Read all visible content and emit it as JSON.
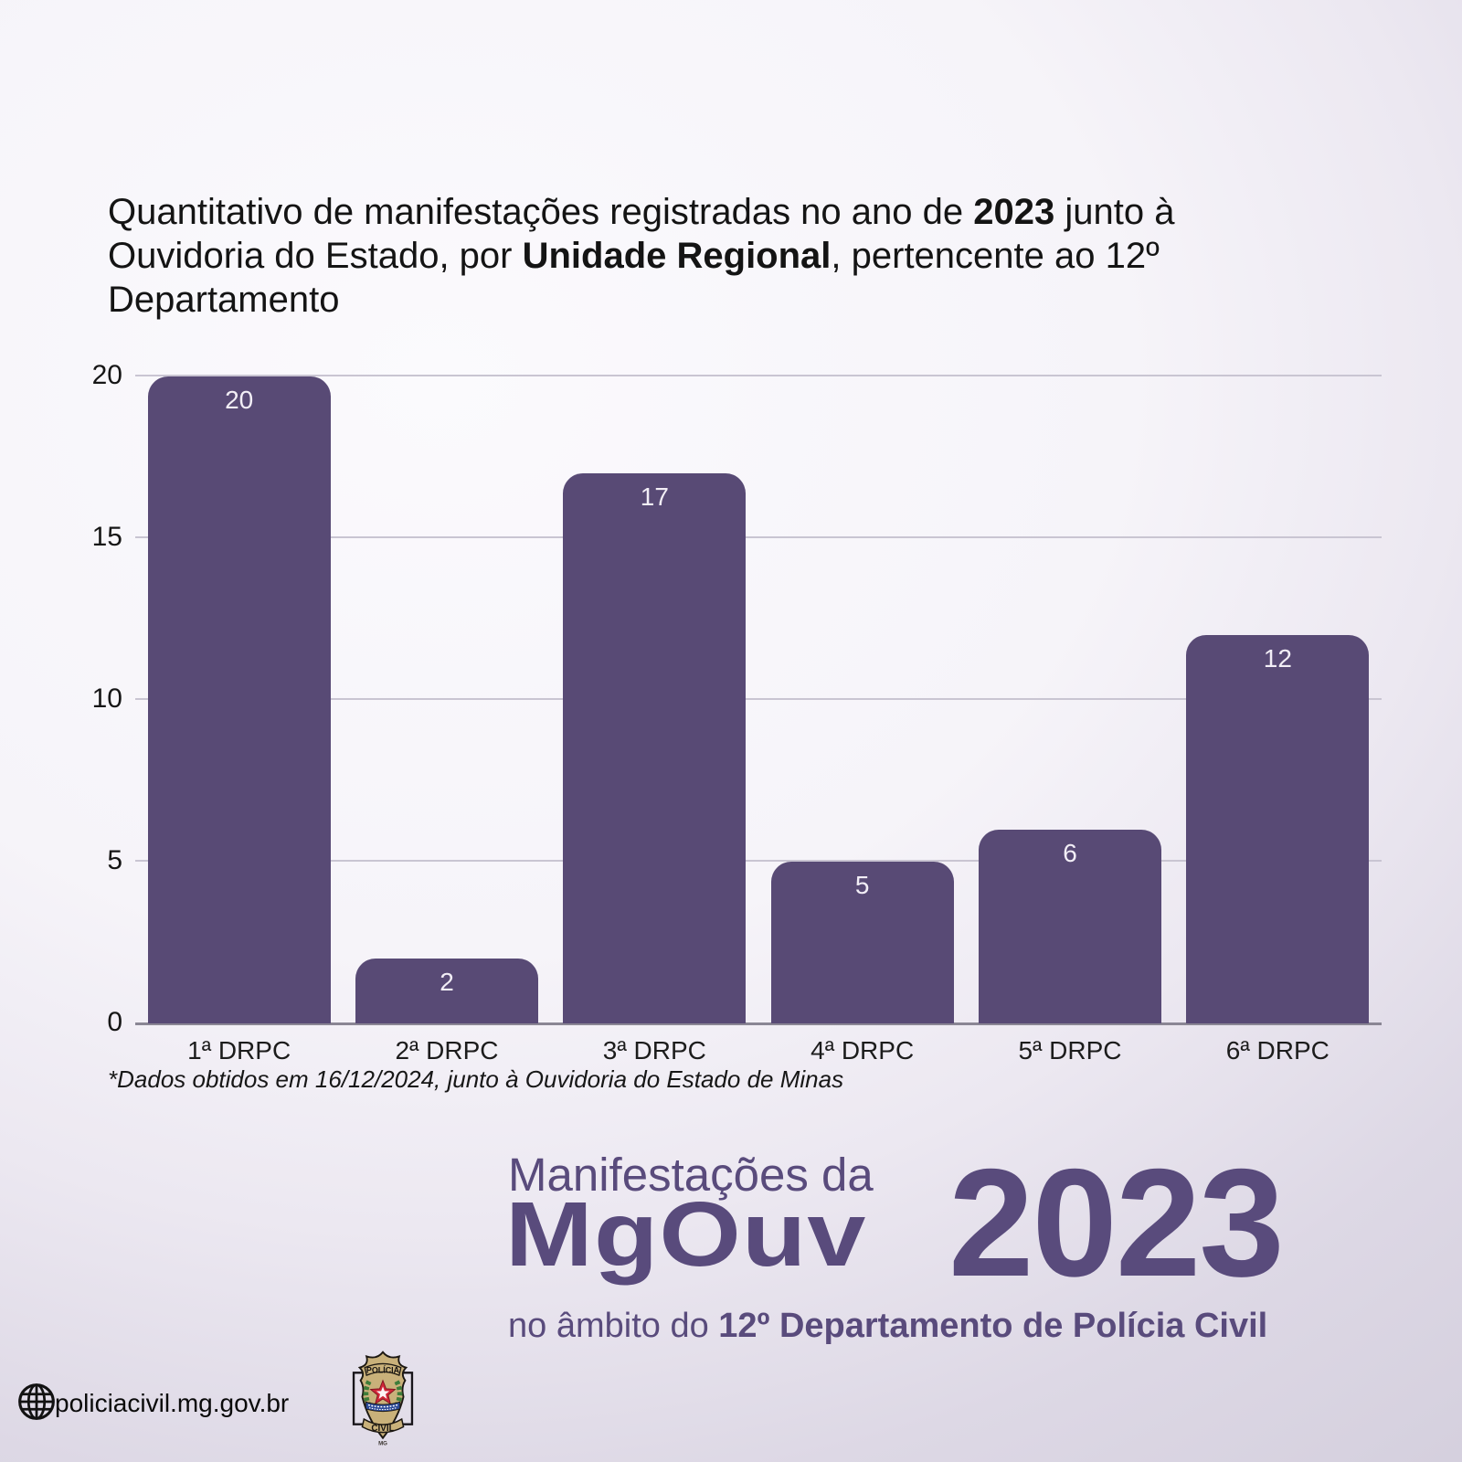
{
  "title": {
    "lines": [
      [
        {
          "t": "Quantitativo de manifestações registradas no ano de ",
          "b": false
        },
        {
          "t": "2023",
          "b": true
        },
        {
          "t": " junto à",
          "b": false
        }
      ],
      [
        {
          "t": "Ouvidoria do Estado, por ",
          "b": false
        },
        {
          "t": "Unidade Regional",
          "b": true
        },
        {
          "t": ", pertencente ao 12º",
          "b": false
        }
      ],
      [
        {
          "t": "Departamento",
          "b": false
        }
      ]
    ]
  },
  "chart_data": {
    "type": "bar",
    "categories": [
      "1ª DRPC",
      "2ª DRPC",
      "3ª DRPC",
      "4ª DRPC",
      "5ª DRPC",
      "6ª DRPC"
    ],
    "values": [
      20,
      2,
      17,
      5,
      6,
      12
    ],
    "title": "Quantitativo de manifestações registradas no ano de 2023 junto à Ouvidoria do Estado, por Unidade Regional, pertencente ao 12º Departamento",
    "xlabel": "",
    "ylabel": "",
    "ylim": [
      0,
      20
    ],
    "yticks": [
      0,
      5,
      10,
      15,
      20
    ],
    "grid": true,
    "value_labels": "inside-top",
    "bar_color": "#584a75"
  },
  "footnote": "*Dados obtidos em 16/12/2024, junto à Ouvidoria do Estado de Minas",
  "branding": {
    "line1": "Manifestações da",
    "wordmark": "MgOuv",
    "year": "2023",
    "sub_normal": "no âmbito do ",
    "sub_bold": "12º Departamento de Polícia Civil"
  },
  "footer": {
    "url": "policiacivil.mg.gov.br",
    "badge": {
      "top": "POLÍCIA",
      "bottom": "CIVIL",
      "state": "MG"
    },
    "globe_icon": "wireframe-globe"
  },
  "colors": {
    "bar": "#584a75",
    "brand_purple": "#594b7c",
    "value_label": "#f2eef6",
    "gridline": "#c9c5d2",
    "axis": "#8a8694",
    "title_text": "#141414",
    "badge_tan": "#c9b17a",
    "badge_red": "#d02637",
    "badge_green": "#3e7d3a",
    "badge_blue": "#2c4a98"
  }
}
